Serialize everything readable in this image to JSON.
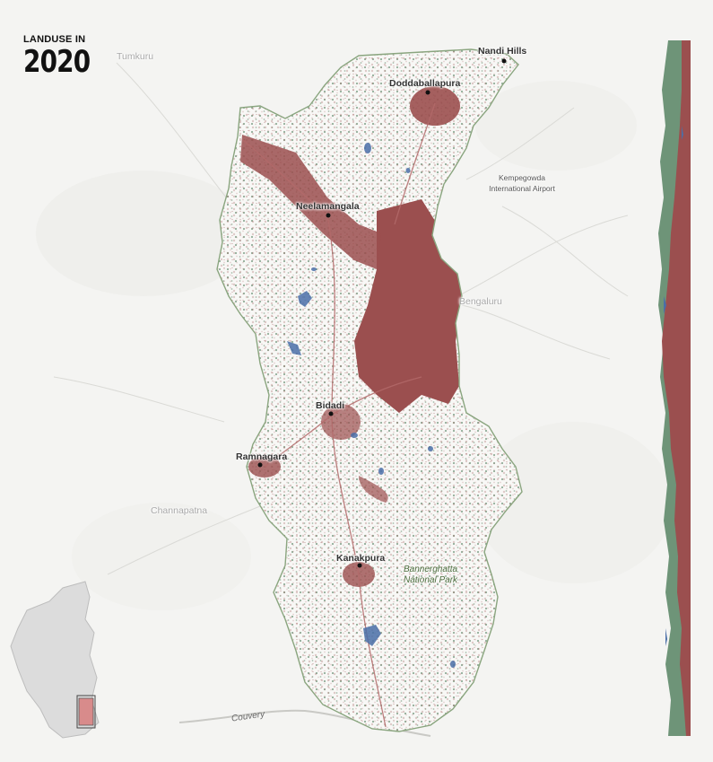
{
  "title": {
    "top": "LANDUSE IN",
    "year": "2020"
  },
  "colors": {
    "background": "#f4f4f2",
    "built_up": "#9b4f4f",
    "vegetation": "#6e9478",
    "water": "#4a6fa8",
    "region_fill": "#f8f8f6",
    "region_border": "#8aa57f",
    "state_fill": "#dcdcdc"
  },
  "cities": {
    "nandi_hills": "Nandi Hills",
    "doddaballapura": "Doddaballapura",
    "neelamangala": "Neelamangala",
    "bidadi": "Bidadi",
    "ramnagara": "Ramnagara",
    "kanakpura": "Kanakpura"
  },
  "context_places": {
    "tumkuru": "Tumkuru",
    "bengaluru": "Bengaluru",
    "channapatna": "Channapatna"
  },
  "airport": {
    "line1": "Kempegowda",
    "line2": "International Airport"
  },
  "park": {
    "line1": "Bannerghatta",
    "line2": "National Park"
  },
  "river": "Couvery",
  "icons": {
    "inset": "karnataka-locator-map",
    "city": "city-dot-icon"
  }
}
